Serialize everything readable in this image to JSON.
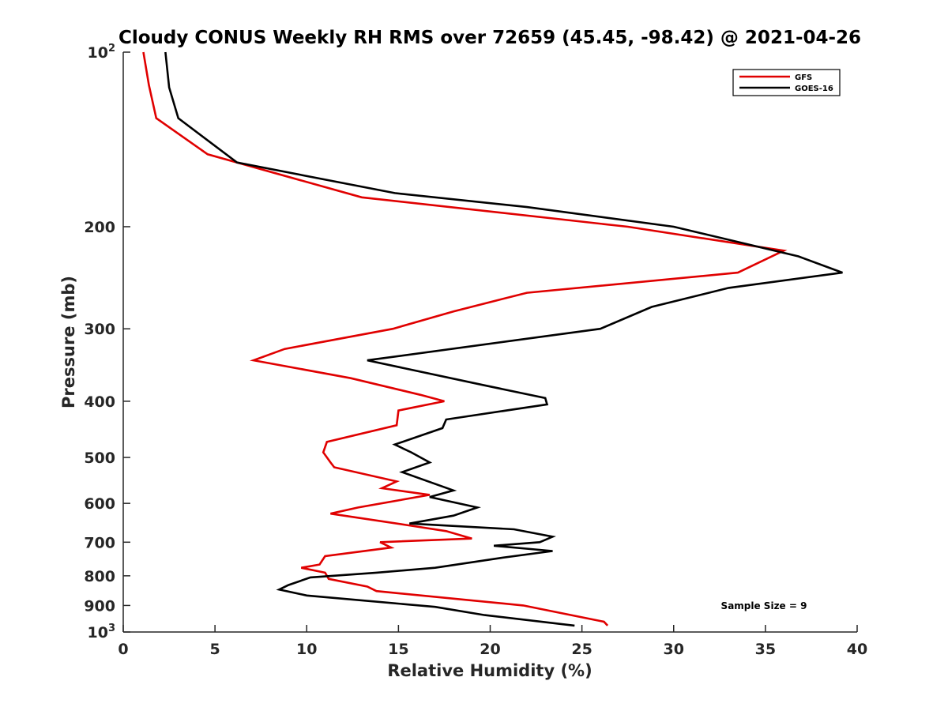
{
  "chart_data": {
    "type": "line",
    "title": "Cloudy CONUS Weekly RH RMS over 72659 (45.45, -98.42) @ 2021-04-26",
    "xlabel": "Relative Humidity (%)",
    "ylabel": "Pressure (mb)",
    "xlim": [
      0,
      40
    ],
    "ylim": [
      100,
      1000
    ],
    "y_scale": "log",
    "y_reversed": true,
    "grid": false,
    "legend_position": "top-right",
    "x_ticks": [
      "0",
      "5",
      "10",
      "15",
      "20",
      "25",
      "30",
      "35",
      "40"
    ],
    "y_ticks": [
      {
        "value": 100,
        "base": "10",
        "exp": "2"
      },
      {
        "value": 200,
        "label": "200"
      },
      {
        "value": 300,
        "label": "300"
      },
      {
        "value": 400,
        "label": "400"
      },
      {
        "value": 500,
        "label": "500"
      },
      {
        "value": 600,
        "label": "600"
      },
      {
        "value": 700,
        "label": "700"
      },
      {
        "value": 800,
        "label": "800"
      },
      {
        "value": 900,
        "label": "900"
      },
      {
        "value": 1000,
        "base": "10",
        "exp": "3"
      }
    ],
    "annotation": "Sample Size = 9",
    "series": [
      {
        "name": "GFS",
        "color": "#e00000",
        "points": [
          [
            1.1,
            100
          ],
          [
            1.4,
            114
          ],
          [
            1.8,
            130
          ],
          [
            4.6,
            150
          ],
          [
            13,
            178
          ],
          [
            27.5,
            200
          ],
          [
            36,
            220
          ],
          [
            33.5,
            240
          ],
          [
            22,
            260
          ],
          [
            18,
            280
          ],
          [
            14.7,
            300
          ],
          [
            8.8,
            325
          ],
          [
            7.1,
            340
          ],
          [
            12.4,
            365
          ],
          [
            16.2,
            390
          ],
          [
            17.5,
            400
          ],
          [
            15,
            415
          ],
          [
            14.9,
            440
          ],
          [
            11.1,
            470
          ],
          [
            10.9,
            490
          ],
          [
            11.3,
            510
          ],
          [
            11.5,
            520
          ],
          [
            14.9,
            550
          ],
          [
            14.1,
            565
          ],
          [
            16.7,
            580
          ],
          [
            12.8,
            610
          ],
          [
            11.3,
            625
          ],
          [
            15.6,
            655
          ],
          [
            17.6,
            670
          ],
          [
            19,
            690
          ],
          [
            14,
            700
          ],
          [
            14.6,
            715
          ],
          [
            11,
            740
          ],
          [
            10.7,
            765
          ],
          [
            9.7,
            775
          ],
          [
            11,
            790
          ],
          [
            11.2,
            810
          ],
          [
            13.3,
            835
          ],
          [
            13.8,
            850
          ],
          [
            21.8,
            900
          ],
          [
            26.2,
            960
          ],
          [
            26.4,
            975
          ]
        ]
      },
      {
        "name": "GOES-16",
        "color": "#000000",
        "points": [
          [
            2.3,
            100
          ],
          [
            2.5,
            115
          ],
          [
            3,
            130
          ],
          [
            6.2,
            155
          ],
          [
            14.8,
            175
          ],
          [
            22,
            185
          ],
          [
            30,
            200
          ],
          [
            36.8,
            225
          ],
          [
            39.2,
            240
          ],
          [
            33,
            255
          ],
          [
            28.8,
            275
          ],
          [
            26,
            300
          ],
          [
            13.3,
            340
          ],
          [
            19.6,
            375
          ],
          [
            23,
            395
          ],
          [
            23.1,
            405
          ],
          [
            17.6,
            430
          ],
          [
            17.4,
            445
          ],
          [
            14.8,
            475
          ],
          [
            15.7,
            490
          ],
          [
            16.7,
            510
          ],
          [
            15.2,
            530
          ],
          [
            18,
            570
          ],
          [
            16.7,
            585
          ],
          [
            19.3,
            610
          ],
          [
            18,
            630
          ],
          [
            15.6,
            650
          ],
          [
            21.3,
            665
          ],
          [
            23.4,
            685
          ],
          [
            22.7,
            700
          ],
          [
            20.2,
            710
          ],
          [
            23.4,
            725
          ],
          [
            20.6,
            745
          ],
          [
            17,
            775
          ],
          [
            13.8,
            790
          ],
          [
            10.2,
            805
          ],
          [
            9,
            830
          ],
          [
            8.5,
            845
          ],
          [
            10,
            865
          ],
          [
            17,
            905
          ],
          [
            19.7,
            935
          ],
          [
            24.6,
            975
          ]
        ]
      }
    ]
  }
}
